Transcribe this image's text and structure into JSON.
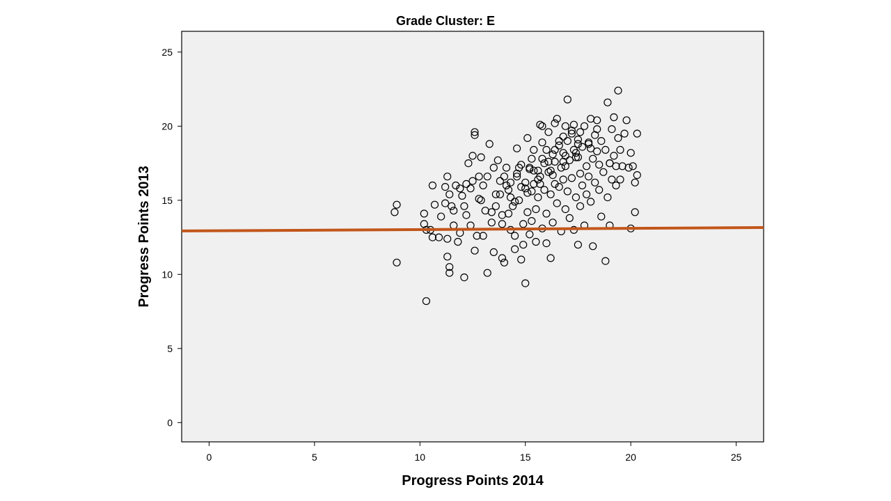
{
  "chart_data": {
    "type": "scatter",
    "title": "Grade Cluster: E",
    "xlabel": "Progress Points 2014",
    "ylabel": "Progress Points 2013",
    "xlim": [
      -1.3,
      26.3
    ],
    "ylim": [
      -1.3,
      26.4
    ],
    "xticks": [
      0,
      5,
      10,
      15,
      20,
      25
    ],
    "yticks": [
      0,
      5,
      10,
      15,
      20,
      25
    ],
    "grid": false,
    "plot_background": "#f0f0f0",
    "marker": "hollow-circle",
    "marker_color": "#000000",
    "line_color": "#c2561a",
    "fit_line": {
      "x": [
        -1.3,
        26.3
      ],
      "y": [
        12.93,
        13.16
      ]
    },
    "points": [
      [
        8.8,
        14.2
      ],
      [
        8.9,
        14.7
      ],
      [
        8.9,
        10.8
      ],
      [
        10.2,
        14.1
      ],
      [
        10.2,
        13.4
      ],
      [
        10.3,
        13.0
      ],
      [
        10.3,
        8.2
      ],
      [
        10.5,
        13.0
      ],
      [
        10.6,
        12.5
      ],
      [
        10.6,
        16.0
      ],
      [
        10.7,
        14.7
      ],
      [
        10.9,
        12.5
      ],
      [
        11.0,
        13.9
      ],
      [
        11.2,
        14.8
      ],
      [
        11.2,
        15.9
      ],
      [
        11.3,
        16.6
      ],
      [
        11.3,
        12.4
      ],
      [
        11.3,
        11.2
      ],
      [
        11.4,
        10.5
      ],
      [
        11.4,
        10.1
      ],
      [
        11.5,
        14.6
      ],
      [
        11.6,
        13.3
      ],
      [
        11.7,
        16.0
      ],
      [
        11.8,
        12.2
      ],
      [
        11.9,
        12.8
      ],
      [
        12.0,
        15.3
      ],
      [
        12.1,
        14.6
      ],
      [
        12.2,
        16.1
      ],
      [
        12.3,
        17.5
      ],
      [
        12.4,
        13.3
      ],
      [
        12.5,
        18.0
      ],
      [
        12.5,
        16.3
      ],
      [
        12.6,
        11.6
      ],
      [
        12.6,
        19.6
      ],
      [
        12.6,
        19.4
      ],
      [
        12.7,
        12.6
      ],
      [
        12.8,
        15.1
      ],
      [
        12.9,
        17.9
      ],
      [
        13.0,
        12.6
      ],
      [
        13.0,
        16.0
      ],
      [
        12.1,
        9.8
      ],
      [
        13.2,
        10.1
      ],
      [
        13.3,
        18.8
      ],
      [
        13.4,
        13.5
      ],
      [
        13.5,
        11.5
      ],
      [
        13.6,
        14.6
      ],
      [
        13.7,
        17.7
      ],
      [
        13.8,
        15.4
      ],
      [
        13.9,
        13.4
      ],
      [
        13.9,
        11.1
      ],
      [
        14.0,
        10.8
      ],
      [
        14.1,
        17.2
      ],
      [
        14.2,
        14.1
      ],
      [
        14.3,
        16.2
      ],
      [
        14.3,
        13.0
      ],
      [
        14.4,
        14.6
      ],
      [
        14.5,
        11.7
      ],
      [
        14.5,
        12.6
      ],
      [
        14.6,
        16.8
      ],
      [
        14.6,
        18.5
      ],
      [
        14.7,
        15.0
      ],
      [
        14.8,
        11.0
      ],
      [
        14.8,
        17.4
      ],
      [
        14.9,
        13.4
      ],
      [
        14.9,
        12.0
      ],
      [
        15.0,
        9.4
      ],
      [
        15.0,
        16.2
      ],
      [
        15.1,
        14.2
      ],
      [
        15.1,
        19.2
      ],
      [
        15.2,
        12.7
      ],
      [
        15.2,
        17.1
      ],
      [
        15.3,
        15.6
      ],
      [
        15.3,
        13.6
      ],
      [
        15.4,
        18.4
      ],
      [
        15.4,
        16.1
      ],
      [
        15.5,
        14.4
      ],
      [
        15.5,
        12.2
      ],
      [
        15.6,
        17.0
      ],
      [
        15.6,
        15.2
      ],
      [
        15.7,
        20.1
      ],
      [
        15.7,
        16.6
      ],
      [
        15.8,
        13.1
      ],
      [
        15.8,
        18.9
      ],
      [
        15.9,
        15.7
      ],
      [
        15.9,
        17.5
      ],
      [
        16.0,
        14.1
      ],
      [
        16.0,
        12.1
      ],
      [
        16.1,
        16.9
      ],
      [
        16.1,
        19.6
      ],
      [
        16.2,
        11.1
      ],
      [
        16.2,
        15.4
      ],
      [
        16.3,
        18.1
      ],
      [
        16.3,
        13.5
      ],
      [
        16.4,
        17.6
      ],
      [
        16.4,
        16.1
      ],
      [
        16.5,
        20.5
      ],
      [
        16.5,
        14.8
      ],
      [
        16.6,
        18.7
      ],
      [
        16.6,
        15.9
      ],
      [
        16.7,
        12.9
      ],
      [
        16.7,
        17.2
      ],
      [
        16.8,
        19.3
      ],
      [
        16.8,
        16.4
      ],
      [
        16.9,
        14.4
      ],
      [
        16.9,
        18.0
      ],
      [
        17.0,
        21.8
      ],
      [
        17.0,
        15.6
      ],
      [
        17.1,
        17.7
      ],
      [
        17.1,
        13.8
      ],
      [
        17.2,
        19.7
      ],
      [
        17.2,
        16.5
      ],
      [
        17.3,
        18.4
      ],
      [
        17.3,
        13.0
      ],
      [
        17.4,
        15.2
      ],
      [
        17.4,
        17.9
      ],
      [
        17.5,
        12.0
      ],
      [
        17.5,
        19.1
      ],
      [
        17.6,
        16.8
      ],
      [
        17.6,
        14.6
      ],
      [
        17.7,
        18.6
      ],
      [
        17.7,
        16.0
      ],
      [
        17.8,
        20.0
      ],
      [
        17.8,
        13.3
      ],
      [
        17.9,
        17.3
      ],
      [
        17.9,
        15.4
      ],
      [
        18.0,
        18.9
      ],
      [
        18.0,
        16.6
      ],
      [
        18.1,
        20.5
      ],
      [
        18.1,
        14.9
      ],
      [
        18.2,
        17.8
      ],
      [
        18.2,
        11.9
      ],
      [
        18.3,
        19.4
      ],
      [
        18.3,
        16.2
      ],
      [
        18.4,
        18.3
      ],
      [
        18.4,
        20.4
      ],
      [
        18.5,
        15.7
      ],
      [
        18.5,
        17.4
      ],
      [
        18.6,
        19.0
      ],
      [
        18.6,
        13.9
      ],
      [
        18.7,
        16.9
      ],
      [
        18.8,
        18.4
      ],
      [
        18.8,
        10.9
      ],
      [
        18.9,
        21.6
      ],
      [
        18.9,
        15.2
      ],
      [
        19.0,
        17.5
      ],
      [
        19.0,
        13.3
      ],
      [
        19.1,
        19.8
      ],
      [
        19.1,
        16.4
      ],
      [
        19.2,
        20.6
      ],
      [
        19.2,
        18.0
      ],
      [
        19.3,
        17.3
      ],
      [
        19.3,
        16.0
      ],
      [
        19.4,
        22.4
      ],
      [
        19.4,
        19.2
      ],
      [
        19.5,
        16.4
      ],
      [
        19.5,
        18.4
      ],
      [
        19.6,
        17.3
      ],
      [
        19.7,
        19.5
      ],
      [
        19.8,
        20.4
      ],
      [
        19.9,
        17.2
      ],
      [
        20.0,
        18.2
      ],
      [
        20.0,
        13.1
      ],
      [
        20.1,
        17.3
      ],
      [
        20.2,
        14.2
      ],
      [
        20.2,
        16.2
      ],
      [
        20.3,
        19.5
      ],
      [
        20.3,
        16.7
      ],
      [
        19.0,
        17.5
      ],
      [
        18.4,
        19.8
      ],
      [
        16.9,
        20.0
      ],
      [
        15.8,
        20.0
      ],
      [
        16.4,
        20.2
      ],
      [
        17.3,
        20.1
      ],
      [
        13.9,
        14.0
      ],
      [
        14.2,
        15.7
      ],
      [
        14.8,
        15.9
      ],
      [
        15.4,
        17.0
      ],
      [
        16.1,
        17.6
      ],
      [
        16.8,
        18.2
      ],
      [
        17.5,
        18.8
      ],
      [
        14.5,
        14.9
      ],
      [
        15.1,
        15.5
      ],
      [
        15.7,
        16.1
      ],
      [
        16.3,
        16.7
      ],
      [
        16.9,
        17.3
      ],
      [
        17.5,
        17.9
      ],
      [
        18.1,
        18.5
      ],
      [
        14.0,
        16.6
      ],
      [
        14.7,
        17.2
      ],
      [
        15.3,
        17.8
      ],
      [
        16.0,
        18.4
      ],
      [
        16.6,
        19.0
      ],
      [
        17.2,
        19.5
      ],
      [
        14.3,
        15.2
      ],
      [
        15.0,
        15.8
      ],
      [
        15.6,
        16.4
      ],
      [
        16.2,
        17.0
      ],
      [
        16.8,
        17.6
      ],
      [
        17.4,
        18.2
      ],
      [
        18.0,
        18.8
      ],
      [
        13.6,
        15.4
      ],
      [
        14.1,
        16.0
      ],
      [
        14.6,
        16.6
      ],
      [
        15.2,
        17.2
      ],
      [
        15.8,
        17.8
      ],
      [
        16.4,
        18.4
      ],
      [
        17.0,
        19.0
      ],
      [
        17.6,
        19.6
      ],
      [
        13.4,
        14.2
      ],
      [
        13.8,
        16.3
      ],
      [
        12.9,
        15.0
      ],
      [
        13.1,
        14.3
      ],
      [
        12.8,
        16.6
      ],
      [
        12.4,
        15.8
      ],
      [
        12.2,
        14.0
      ],
      [
        11.9,
        15.8
      ],
      [
        11.6,
        14.3
      ],
      [
        11.4,
        15.4
      ],
      [
        13.5,
        17.2
      ],
      [
        13.2,
        16.6
      ]
    ]
  }
}
